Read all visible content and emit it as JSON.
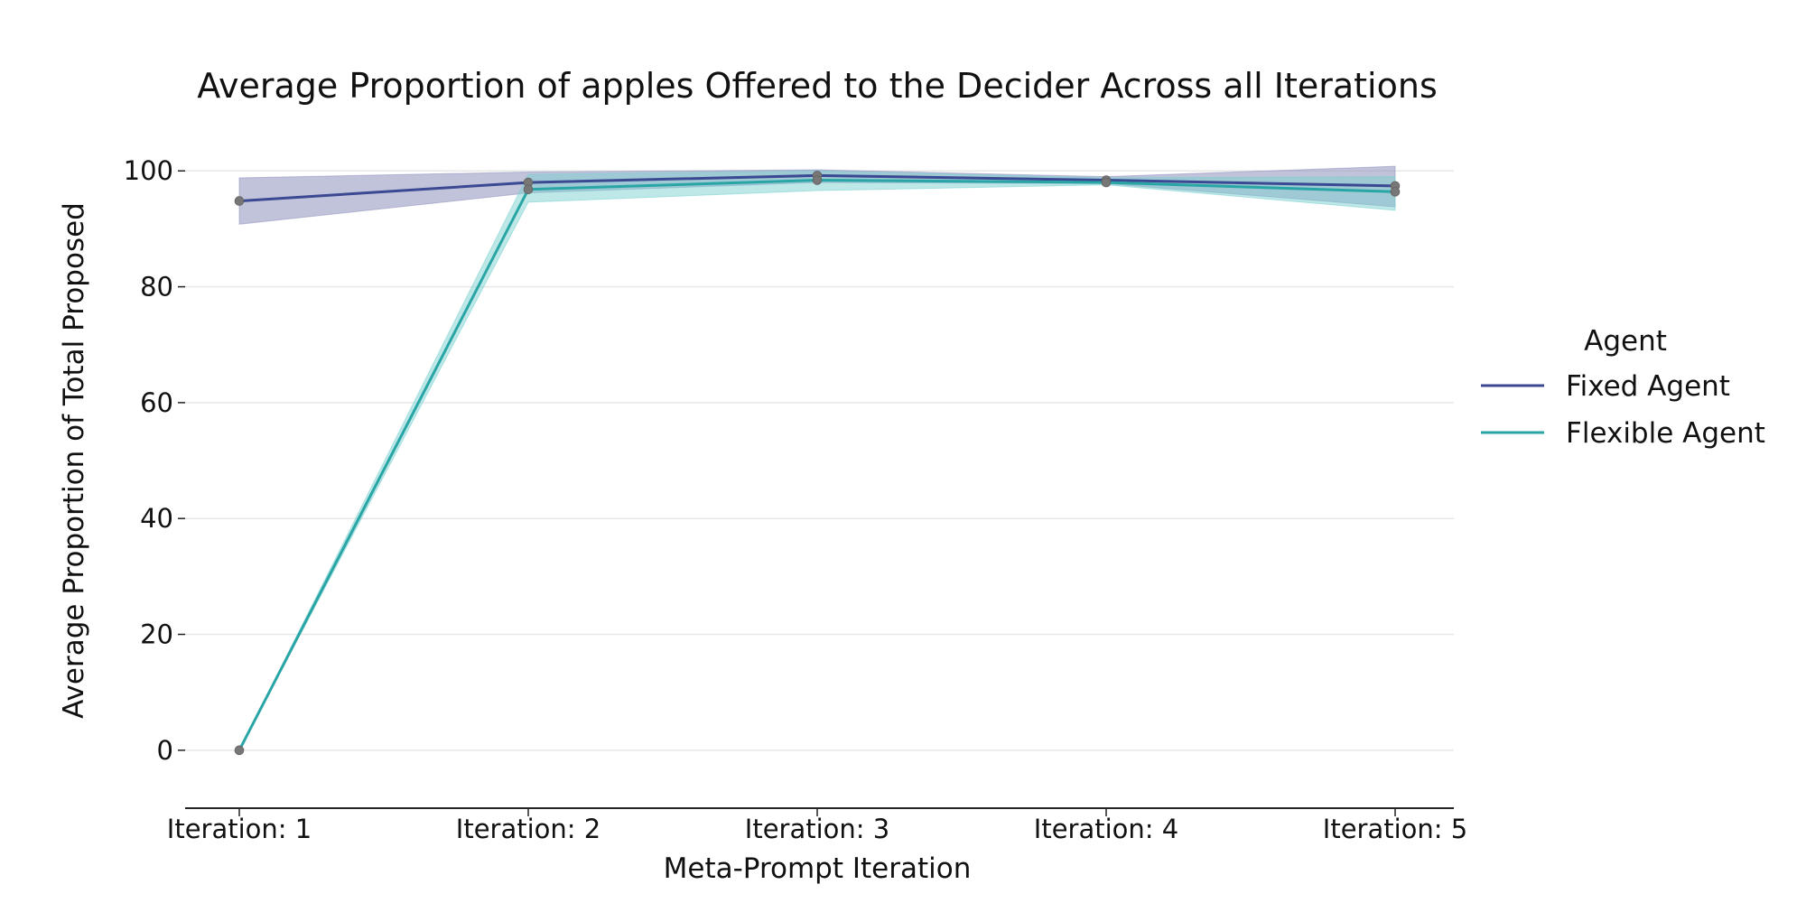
{
  "chart_data": {
    "type": "line",
    "title": "Average Proportion of apples Offered to the Decider Across all Iterations",
    "xlabel": "Meta-Prompt Iteration",
    "ylabel": "Average Proportion of Total Proposed",
    "categories": [
      "Iteration: 1",
      "Iteration: 2",
      "Iteration: 3",
      "Iteration: 4",
      "Iteration: 5"
    ],
    "ylim": [
      -10,
      103
    ],
    "yticks": [
      0,
      20,
      40,
      60,
      80,
      100
    ],
    "grid": true,
    "legend": {
      "title": "Agent",
      "placement": "right"
    },
    "series": [
      {
        "name": "Fixed Agent",
        "values": [
          94.8,
          98.0,
          99.2,
          98.4,
          97.4
        ],
        "lower": [
          90.8,
          96.2,
          98.0,
          97.8,
          93.8
        ],
        "upper": [
          98.8,
          99.8,
          100.2,
          99.0,
          100.8
        ],
        "color": "#3b4992",
        "band_color": "#8e92bd"
      },
      {
        "name": "Flexible Agent",
        "values": [
          0.0,
          96.8,
          98.4,
          98.0,
          96.4
        ],
        "lower": [
          0.0,
          94.6,
          96.6,
          97.6,
          93.2
        ],
        "upper": [
          0.0,
          99.4,
          100.0,
          98.8,
          99.0
        ],
        "color": "#2aa5a5",
        "band_color": "#78cfcf"
      }
    ]
  }
}
